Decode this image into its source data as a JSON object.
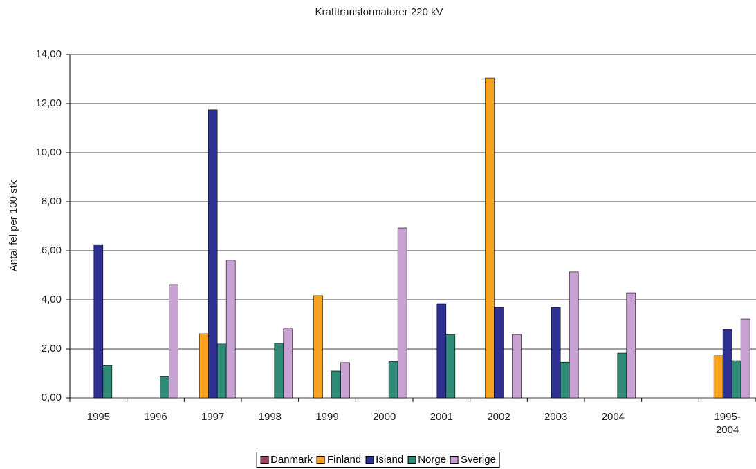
{
  "chart_data": {
    "type": "bar",
    "title": "Krafttransformatorer 220 kV",
    "y_label": "Antal fel per 100 stk",
    "categories": [
      "1995",
      "1996",
      "1997",
      "1998",
      "1999",
      "2000",
      "2001",
      "2002",
      "2003",
      "2004",
      null,
      "1995-\n2004"
    ],
    "series": [
      {
        "name": "Danmark",
        "color": "#a0405c",
        "values": [
          0,
          0,
          0,
          0,
          0,
          0,
          0,
          0,
          0,
          0,
          0,
          0
        ]
      },
      {
        "name": "Finland",
        "color": "#f8a21e",
        "values": [
          0,
          0,
          2.62,
          0,
          4.17,
          0,
          0,
          13.04,
          0,
          0,
          0,
          1.72
        ]
      },
      {
        "name": "Island",
        "color": "#2e3192",
        "values": [
          6.25,
          0,
          11.75,
          0,
          0,
          0,
          3.83,
          3.69,
          3.69,
          0,
          0,
          2.79
        ]
      },
      {
        "name": "Norge",
        "color": "#2f8a78",
        "values": [
          1.32,
          0.87,
          2.2,
          2.23,
          1.1,
          1.49,
          2.59,
          0,
          1.46,
          1.83,
          0,
          1.52
        ]
      },
      {
        "name": "Sverige",
        "color": "#c9a0d2",
        "values": [
          0,
          4.62,
          5.61,
          2.82,
          1.44,
          6.93,
          0,
          2.59,
          5.13,
          4.28,
          0,
          3.21
        ]
      }
    ],
    "ylim": [
      0,
      14
    ],
    "yticks": [
      {
        "value": 0,
        "label": "0,00"
      },
      {
        "value": 2,
        "label": "2,00"
      },
      {
        "value": 4,
        "label": "4,00"
      },
      {
        "value": 6,
        "label": "6,00"
      },
      {
        "value": 8,
        "label": "8,00"
      },
      {
        "value": 10,
        "label": "10,00"
      },
      {
        "value": 12,
        "label": "12,00"
      },
      {
        "value": 14,
        "label": "14,00"
      }
    ],
    "grid": true,
    "legend": "bottom"
  }
}
